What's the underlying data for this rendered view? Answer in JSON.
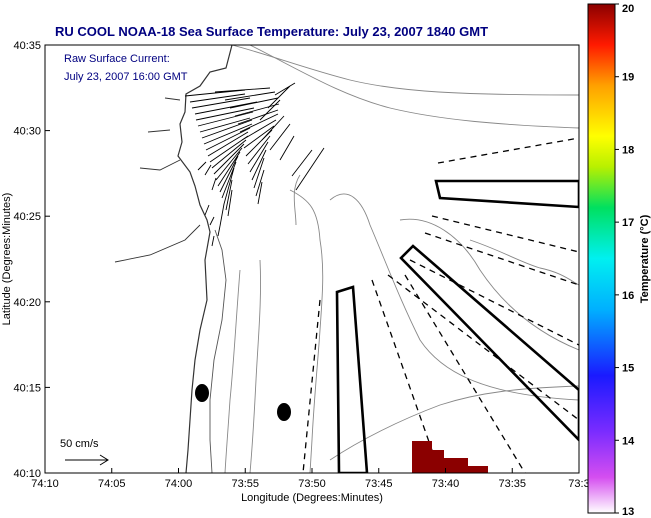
{
  "title": "RU COOL  NOAA-18  Sea Surface Temperature:  July 23, 2007 1840 GMT",
  "annotation": {
    "line1": "Raw Surface Current:",
    "line2": "July 23, 2007 16:00 GMT"
  },
  "scale_label": "50 cm/s",
  "x_axis": {
    "label": "Longitude (Degrees:Minutes)",
    "ticks": [
      "74:10",
      "74:05",
      "74:00",
      "73:55",
      "73:50",
      "73:45",
      "73:40",
      "73:35",
      "73:3"
    ]
  },
  "y_axis": {
    "label": "Latitude (Degrees:Minutes)",
    "ticks": [
      "40:35",
      "40:30",
      "40:25",
      "40:20",
      "40:15",
      "40:10"
    ]
  },
  "colorbar": {
    "label": "Temperature (°C)",
    "ticks": [
      "20",
      "19",
      "18",
      "17",
      "16",
      "15",
      "14",
      "13"
    ],
    "range": [
      13,
      20
    ]
  },
  "colors": {
    "title": "#000080",
    "sst_patch": "#8b0000"
  }
}
